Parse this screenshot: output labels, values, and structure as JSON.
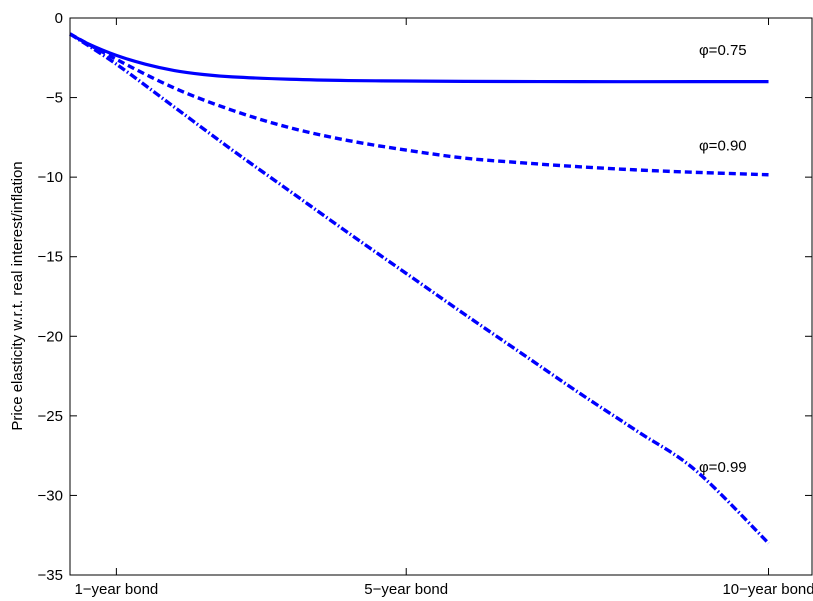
{
  "chart_data": {
    "type": "line",
    "title": "",
    "xlabel": "",
    "ylabel": "Price elasticity w.r.t. real interest/inflation",
    "xlim": [
      -0.8,
      12
    ],
    "ylim": [
      -35,
      0
    ],
    "xticks": [
      {
        "value": 0,
        "label": "1−year bond"
      },
      {
        "value": 5,
        "label": "5−year bond"
      },
      {
        "value": 11.25,
        "label": "10−year bond"
      }
    ],
    "yticks": [
      {
        "value": 0,
        "label": "0"
      },
      {
        "value": -5,
        "label": "−5"
      },
      {
        "value": -10,
        "label": "−10"
      },
      {
        "value": -15,
        "label": "−15"
      },
      {
        "value": -20,
        "label": "−20"
      },
      {
        "value": -25,
        "label": "−25"
      },
      {
        "value": -30,
        "label": "−30"
      },
      {
        "value": -35,
        "label": "−35"
      }
    ],
    "grid": false,
    "color": "#0000ff",
    "series": [
      {
        "style": "solid",
        "x": [
          -0.8,
          -0.5,
          0,
          0.5,
          1,
          1.5,
          2,
          3,
          4,
          5,
          6,
          8,
          10,
          11.25
        ],
        "y": [
          -1.0,
          -1.6,
          -2.35,
          -2.9,
          -3.3,
          -3.55,
          -3.7,
          -3.85,
          -3.93,
          -3.96,
          -3.98,
          -4.0,
          -4.0,
          -4.0
        ]
      },
      {
        "style": "dashed",
        "x": [
          -0.8,
          0,
          1,
          2,
          3,
          4,
          5,
          6,
          7,
          8,
          9,
          10,
          11.25
        ],
        "y": [
          -1.0,
          -2.6,
          -4.4,
          -5.8,
          -6.9,
          -7.7,
          -8.3,
          -8.8,
          -9.1,
          -9.35,
          -9.55,
          -9.7,
          -9.85
        ]
      },
      {
        "style": "dashdot",
        "x": [
          -0.8,
          0,
          1,
          2,
          3,
          4,
          5,
          6,
          7,
          8,
          9,
          10,
          11.25
        ],
        "y": [
          -1.0,
          -2.9,
          -5.6,
          -8.3,
          -10.9,
          -13.5,
          -16.05,
          -18.6,
          -21.1,
          -23.6,
          -26.0,
          -28.45,
          -33.0
        ]
      }
    ],
    "annotations": [
      {
        "text": "φ=0.75",
        "x": 10.05,
        "y": -2.0
      },
      {
        "text": "φ=0.90",
        "x": 10.05,
        "y": -8.0
      },
      {
        "text": "φ=0.99",
        "x": 10.05,
        "y": -28.2
      }
    ]
  }
}
